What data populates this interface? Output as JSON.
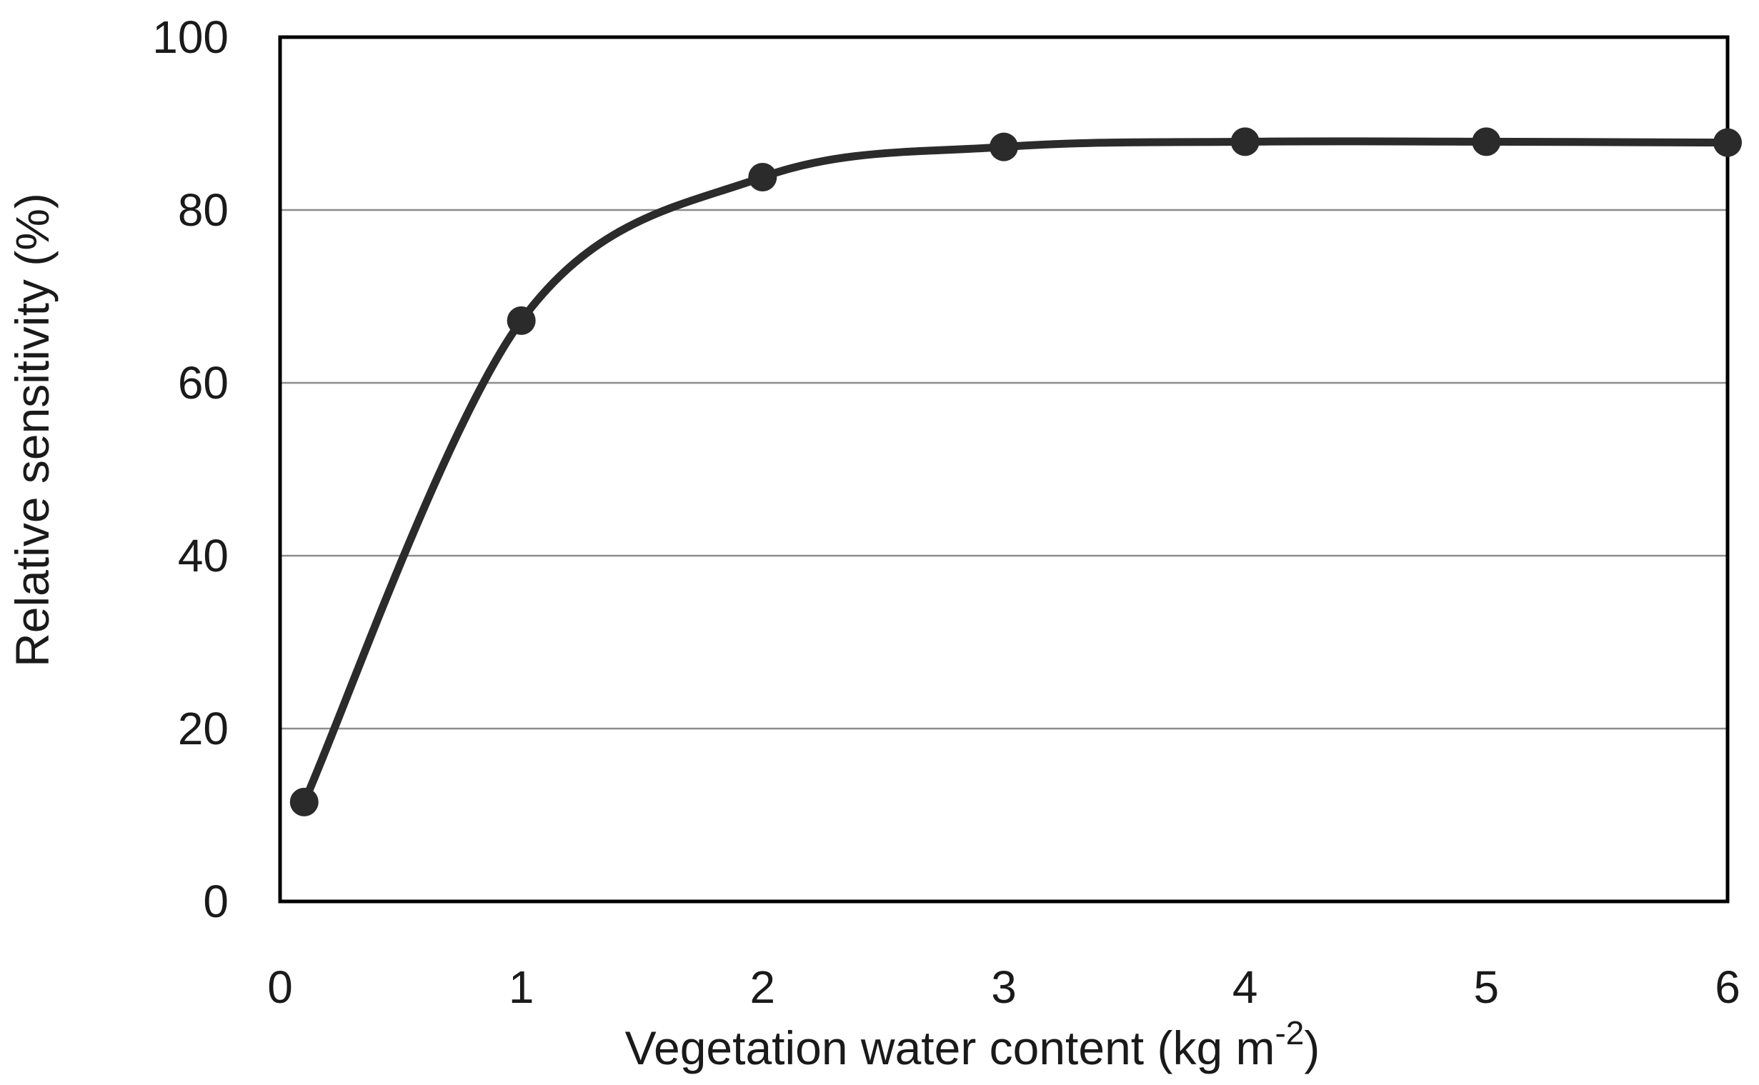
{
  "chart_data": {
    "type": "line",
    "title": "",
    "xlabel": "Vegetation water content (kg m",
    "xlabel_superscript": "-2",
    "xlabel_suffix": ")",
    "ylabel": "Relative sensitivity (%)",
    "xlim": [
      0,
      6
    ],
    "ylim": [
      0,
      100
    ],
    "x_ticks": [
      0,
      1,
      2,
      3,
      4,
      5,
      6
    ],
    "x_tick_labels": [
      "0",
      "1",
      "2",
      "3",
      "4",
      "5",
      "6"
    ],
    "y_ticks": [
      0,
      20,
      40,
      60,
      80,
      100
    ],
    "y_tick_labels": [
      "0",
      "20",
      "40",
      "60",
      "80",
      "100"
    ],
    "grid": "horizontal",
    "legend": "none",
    "series": [
      {
        "x": [
          0.1,
          1,
          2,
          3,
          4,
          5,
          6
        ],
        "values": [
          11.5,
          67.2,
          83.8,
          87.3,
          87.9,
          87.9,
          87.8
        ],
        "color": "#2b2b2b",
        "marker": "circle",
        "line": "smooth"
      }
    ],
    "colors": {
      "line": "#2b2b2b",
      "gridline": "#8c8c8c",
      "frame": "#000000"
    }
  }
}
